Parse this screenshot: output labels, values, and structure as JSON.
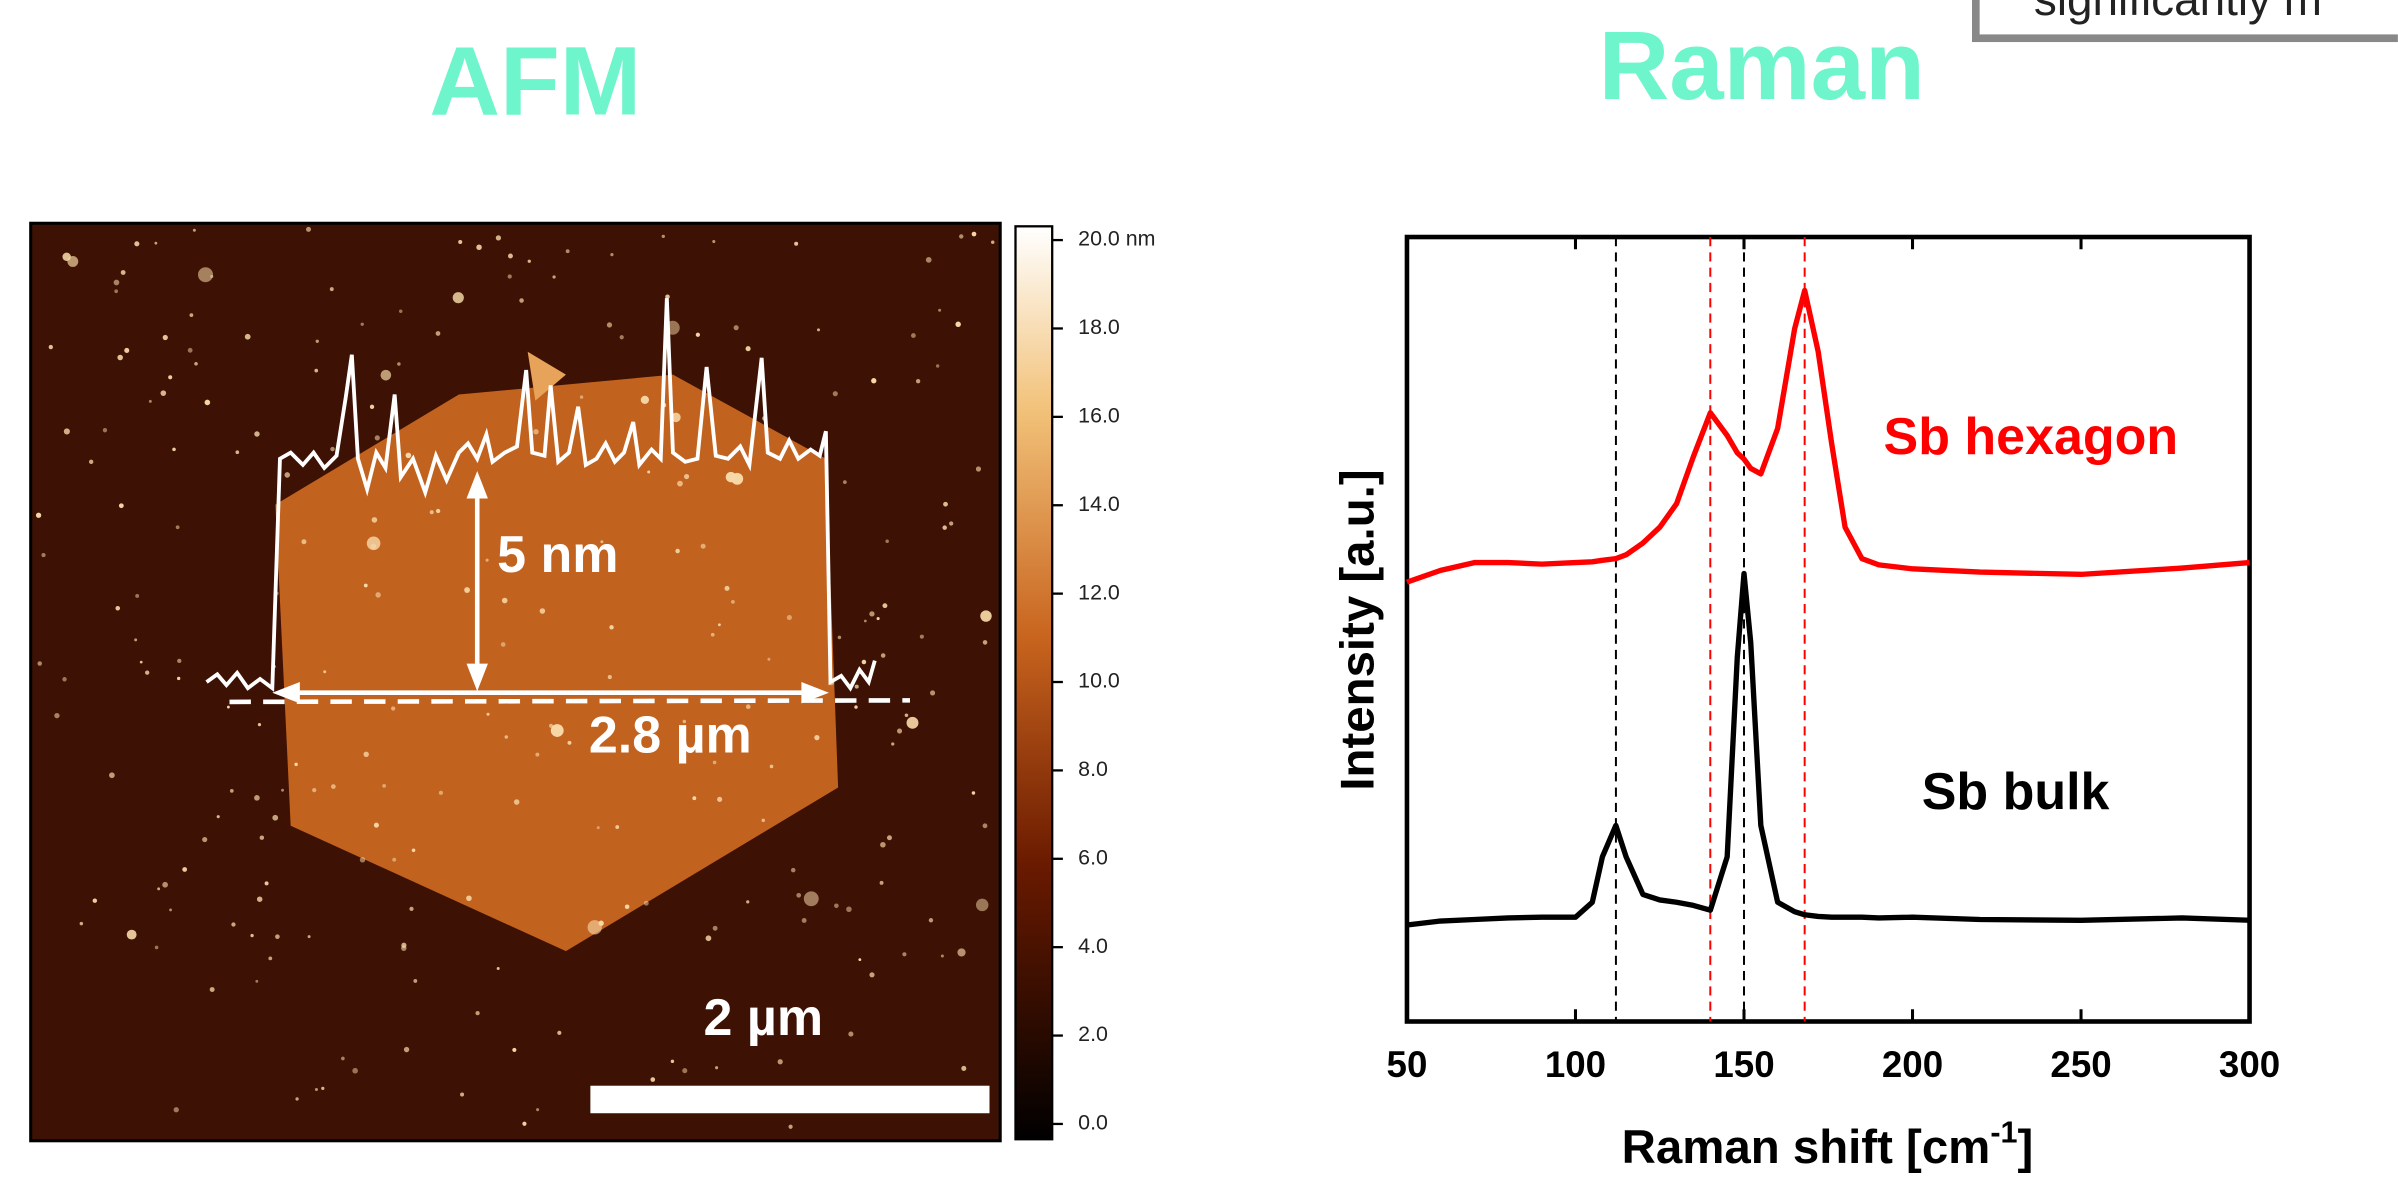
{
  "header": {
    "callout": "significantly m"
  },
  "chart_data": [
    {
      "type": "afm",
      "title": "AFM",
      "annotations": {
        "height": "5 nm",
        "width": "2.8 µm",
        "scale_bar": "2 µm"
      },
      "colorbar": {
        "lim": [
          0,
          20
        ],
        "ticks": [
          {
            "value": 0,
            "label": "0.0"
          },
          {
            "value": 2,
            "label": "2.0"
          },
          {
            "value": 4,
            "label": "4.0"
          },
          {
            "value": 6,
            "label": "6.0"
          },
          {
            "value": 8,
            "label": "8.0"
          },
          {
            "value": 10,
            "label": "10.0"
          },
          {
            "value": 12,
            "label": "12.0"
          },
          {
            "value": 14,
            "label": "14.0"
          },
          {
            "value": 16,
            "label": "16.0"
          },
          {
            "value": 18,
            "label": "18.0"
          },
          {
            "value": 20,
            "label": "20.0 nm"
          }
        ]
      }
    },
    {
      "type": "line",
      "title": "Raman",
      "xlabel": {
        "text": "Raman shift [cm",
        "sup": "-1",
        "end": "]"
      },
      "ylabel": "Intensity [a.u.]",
      "xlim": [
        50,
        300
      ],
      "xticks": [
        50,
        100,
        150,
        200,
        250,
        300
      ],
      "ylim": [
        0,
        100
      ],
      "x": [
        50,
        60,
        70,
        80,
        90,
        100,
        105,
        108,
        112,
        115,
        120,
        125,
        130,
        135,
        140,
        145,
        148,
        150,
        152,
        155,
        160,
        165,
        168,
        172,
        176,
        180,
        185,
        190,
        200,
        220,
        250,
        280,
        300
      ],
      "series": [
        {
          "name": "Sb hexagon",
          "color": "#ff0000",
          "values": [
            56,
            57.5,
            58.5,
            58.5,
            58.3,
            58.5,
            58.6,
            58.8,
            59,
            59.5,
            61,
            63,
            66,
            72,
            77.6,
            74.7,
            72.5,
            71.7,
            70.5,
            69.8,
            75.6,
            88.3,
            93.2,
            85.4,
            73.7,
            63,
            59,
            58.2,
            57.7,
            57.3,
            57,
            57.8,
            58.5
          ]
        },
        {
          "name": "Sb bulk",
          "color": "#000000",
          "values": [
            12.3,
            12.8,
            13,
            13.2,
            13.3,
            13.3,
            15.2,
            21,
            25,
            21,
            16.2,
            15.5,
            15.2,
            14.8,
            14.2,
            21,
            46.4,
            57.1,
            48.3,
            25,
            15.2,
            14,
            13.6,
            13.4,
            13.3,
            13.3,
            13.3,
            13.2,
            13.3,
            13,
            12.9,
            13.2,
            12.9
          ]
        }
      ],
      "reference_lines": [
        {
          "x": 112,
          "color": "#000000"
        },
        {
          "x": 140,
          "color": "#ff0000"
        },
        {
          "x": 150,
          "color": "#000000"
        },
        {
          "x": 168,
          "color": "#ff0000"
        }
      ]
    }
  ]
}
